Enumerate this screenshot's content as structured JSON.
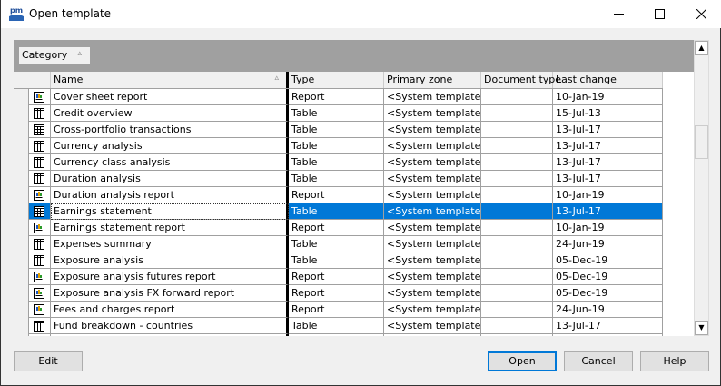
{
  "window": {
    "title": "Open template",
    "logo_text": "pm"
  },
  "group_panel": {
    "category_label": "Category"
  },
  "columns": {
    "name": "Name",
    "type": "Type",
    "primary_zone": "Primary zone",
    "document_type": "Document type",
    "last_change": "Last change"
  },
  "rows": [
    {
      "icon": "report-icon",
      "name": "Cover sheet report",
      "type": "Report",
      "zone": "<System templates>",
      "doctype": "",
      "date": "10-Jan-19"
    },
    {
      "icon": "table-icon",
      "name": "Credit overview",
      "type": "Table",
      "zone": "<System templates>",
      "doctype": "",
      "date": "15-Jul-13"
    },
    {
      "icon": "grid-icon",
      "name": "Cross-portfolio transactions",
      "type": "Table",
      "zone": "<System templates>",
      "doctype": "",
      "date": "13-Jul-17"
    },
    {
      "icon": "table-icon",
      "name": "Currency analysis",
      "type": "Table",
      "zone": "<System templates>",
      "doctype": "",
      "date": "13-Jul-17"
    },
    {
      "icon": "table-icon",
      "name": "Currency class analysis",
      "type": "Table",
      "zone": "<System templates>",
      "doctype": "",
      "date": "13-Jul-17"
    },
    {
      "icon": "table-icon",
      "name": "Duration analysis",
      "type": "Table",
      "zone": "<System templates>",
      "doctype": "",
      "date": "13-Jul-17"
    },
    {
      "icon": "report-icon",
      "name": "Duration analysis report",
      "type": "Report",
      "zone": "<System templates>",
      "doctype": "",
      "date": "10-Jan-19"
    },
    {
      "icon": "grid-icon",
      "name": "Earnings statement",
      "type": "Table",
      "zone": "<System templates>",
      "doctype": "",
      "date": "13-Jul-17",
      "selected": true
    },
    {
      "icon": "report-icon",
      "name": "Earnings statement report",
      "type": "Report",
      "zone": "<System templates>",
      "doctype": "",
      "date": "10-Jan-19"
    },
    {
      "icon": "table-icon",
      "name": "Expenses summary",
      "type": "Table",
      "zone": "<System templates>",
      "doctype": "",
      "date": "24-Jun-19"
    },
    {
      "icon": "table-icon",
      "name": "Exposure analysis",
      "type": "Table",
      "zone": "<System templates>",
      "doctype": "",
      "date": "05-Dec-19"
    },
    {
      "icon": "report-icon",
      "name": "Exposure analysis futures report",
      "type": "Report",
      "zone": "<System templates>",
      "doctype": "",
      "date": "05-Dec-19"
    },
    {
      "icon": "report-icon",
      "name": "Exposure analysis FX forward report",
      "type": "Report",
      "zone": "<System templates>",
      "doctype": "",
      "date": "05-Dec-19"
    },
    {
      "icon": "report-icon",
      "name": "Fees and charges report",
      "type": "Report",
      "zone": "<System templates>",
      "doctype": "",
      "date": "24-Jun-19"
    },
    {
      "icon": "table-icon",
      "name": "Fund breakdown - countries",
      "type": "Table",
      "zone": "<System templates>",
      "doctype": "",
      "date": "13-Jul-17"
    },
    {
      "icon": "table-icon",
      "name": "",
      "type": "",
      "zone": "",
      "doctype": "",
      "date": ""
    }
  ],
  "buttons": {
    "edit": "Edit",
    "open": "Open",
    "cancel": "Cancel",
    "help": "Help"
  },
  "colors": {
    "selection": "#0078d7",
    "group_band": "#a0a0a0"
  }
}
